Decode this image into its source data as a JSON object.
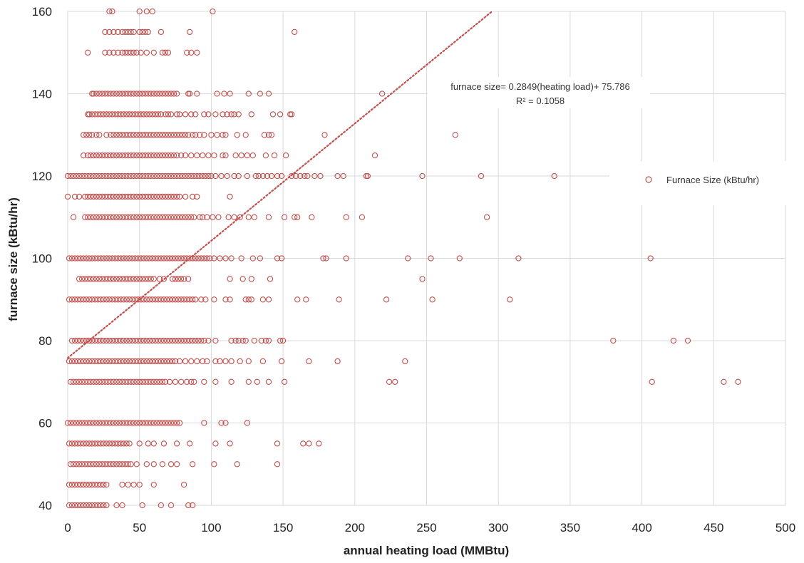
{
  "chart_data": {
    "type": "scatter",
    "xlabel": "annual heating load (MMBtu)",
    "ylabel": "furnace size (kBtu/hr)",
    "xlim": [
      0,
      500
    ],
    "ylim": [
      40,
      160
    ],
    "x_ticks": [
      0,
      50,
      100,
      150,
      200,
      250,
      300,
      350,
      400,
      450,
      500
    ],
    "y_ticks": [
      40,
      60,
      80,
      100,
      120,
      140,
      160
    ],
    "grid": true,
    "legend_position": "right",
    "series": [
      {
        "name": "Furnace Size (kBtu/hr)",
        "color": "#c0504d",
        "marker": "open-circle",
        "rows": [
          {
            "y": 160,
            "x": [
              29,
              31,
              50,
              55,
              59,
              101
            ]
          },
          {
            "y": 155,
            "x": [
              26,
              29,
              32,
              35,
              38,
              40,
              42,
              44,
              46,
              50,
              52,
              54,
              56,
              65,
              85,
              158
            ]
          },
          {
            "y": 150,
            "x": [
              14,
              26,
              29,
              32,
              35,
              38,
              40,
              42,
              44,
              46,
              48,
              51,
              55,
              60,
              66,
              68,
              70,
              83,
              86,
              90
            ]
          },
          {
            "y": 140,
            "x": [
              17,
              18,
              20,
              22,
              24,
              26,
              28,
              30,
              32,
              34,
              36,
              38,
              40,
              42,
              44,
              46,
              48,
              50,
              52,
              54,
              56,
              58,
              60,
              62,
              64,
              66,
              68,
              70,
              72,
              74,
              76,
              84,
              85,
              90,
              104,
              109,
              113,
              126,
              134,
              140,
              219
            ]
          },
          {
            "y": 135,
            "x": [
              14,
              15,
              17,
              19,
              21,
              23,
              25,
              27,
              29,
              31,
              33,
              35,
              37,
              39,
              41,
              43,
              45,
              47,
              49,
              51,
              53,
              55,
              57,
              59,
              61,
              63,
              65,
              68,
              70,
              72,
              76,
              78,
              82,
              86,
              89,
              95,
              98,
              103,
              108,
              111,
              114,
              116,
              119,
              128,
              143,
              148,
              155,
              156
            ]
          },
          {
            "y": 130,
            "x": [
              11,
              13,
              15,
              17,
              20,
              22,
              27,
              30,
              32,
              34,
              36,
              38,
              40,
              42,
              44,
              46,
              48,
              50,
              52,
              54,
              56,
              58,
              60,
              62,
              64,
              66,
              68,
              70,
              72,
              74,
              76,
              78,
              80,
              82,
              84,
              87,
              89,
              92,
              95,
              100,
              104,
              108,
              110,
              118,
              124,
              137,
              140,
              142,
              179,
              270
            ]
          },
          {
            "y": 125,
            "x": [
              11,
              14,
              16,
              18,
              20,
              22,
              24,
              26,
              28,
              30,
              32,
              34,
              36,
              38,
              40,
              42,
              44,
              46,
              48,
              50,
              52,
              54,
              56,
              58,
              60,
              62,
              64,
              66,
              68,
              70,
              72,
              74,
              76,
              79,
              82,
              86,
              90,
              94,
              98,
              102,
              108,
              110,
              117,
              121,
              125,
              129,
              138,
              144,
              152,
              214
            ]
          },
          {
            "y": 120,
            "x": [
              0,
              2,
              4,
              6,
              8,
              10,
              12,
              14,
              16,
              18,
              20,
              22,
              24,
              26,
              28,
              30,
              32,
              34,
              36,
              38,
              40,
              42,
              44,
              46,
              48,
              50,
              52,
              54,
              56,
              58,
              60,
              62,
              64,
              66,
              68,
              70,
              72,
              74,
              76,
              78,
              80,
              82,
              84,
              86,
              88,
              90,
              92,
              94,
              96,
              98,
              100,
              103,
              107,
              111,
              116,
              119,
              125,
              131,
              133,
              136,
              139,
              142,
              146,
              149,
              156,
              159,
              162,
              165,
              167,
              172,
              176,
              188,
              192,
              208,
              209,
              247,
              288,
              339
            ]
          },
          {
            "y": 115,
            "x": [
              0,
              5,
              8,
              12,
              14,
              16,
              18,
              20,
              22,
              24,
              26,
              28,
              30,
              32,
              34,
              36,
              38,
              40,
              42,
              44,
              46,
              48,
              50,
              52,
              54,
              56,
              58,
              60,
              62,
              64,
              66,
              68,
              70,
              72,
              74,
              76,
              78,
              82,
              87,
              90,
              113
            ]
          },
          {
            "y": 110,
            "x": [
              4,
              12,
              14,
              16,
              18,
              20,
              22,
              24,
              26,
              28,
              30,
              32,
              34,
              36,
              38,
              40,
              42,
              44,
              46,
              48,
              50,
              52,
              54,
              56,
              58,
              60,
              62,
              64,
              66,
              68,
              70,
              72,
              74,
              76,
              78,
              80,
              82,
              84,
              86,
              88,
              92,
              94,
              97,
              101,
              105,
              112,
              116,
              120,
              126,
              130,
              140,
              151,
              158,
              160,
              170,
              194,
              205,
              292
            ]
          },
          {
            "y": 100,
            "x": [
              1,
              3,
              5,
              7,
              9,
              11,
              13,
              15,
              17,
              19,
              21,
              23,
              25,
              27,
              29,
              31,
              33,
              35,
              37,
              39,
              41,
              43,
              45,
              47,
              49,
              51,
              53,
              55,
              57,
              59,
              61,
              63,
              65,
              67,
              69,
              71,
              73,
              75,
              77,
              79,
              81,
              83,
              85,
              87,
              89,
              91,
              93,
              95,
              97,
              99,
              102,
              106,
              110,
              114,
              121,
              129,
              134,
              146,
              149,
              178,
              180,
              194,
              237,
              253,
              273,
              314,
              406
            ]
          },
          {
            "y": 95,
            "x": [
              8,
              10,
              12,
              14,
              16,
              18,
              20,
              22,
              24,
              26,
              28,
              30,
              32,
              34,
              36,
              38,
              40,
              42,
              44,
              46,
              48,
              50,
              52,
              54,
              56,
              58,
              60,
              64,
              67,
              73,
              75,
              77,
              79,
              81,
              84,
              113,
              122,
              128,
              141,
              247
            ]
          },
          {
            "y": 90,
            "x": [
              1,
              3,
              5,
              7,
              9,
              11,
              13,
              15,
              17,
              19,
              21,
              23,
              25,
              27,
              29,
              31,
              33,
              35,
              37,
              39,
              41,
              43,
              45,
              47,
              49,
              51,
              53,
              55,
              57,
              59,
              61,
              63,
              65,
              67,
              69,
              71,
              73,
              75,
              77,
              79,
              81,
              83,
              85,
              87,
              89,
              93,
              96,
              102,
              110,
              113,
              124,
              126,
              128,
              136,
              140,
              160,
              166,
              189,
              222,
              254,
              308
            ]
          },
          {
            "y": 80,
            "x": [
              3,
              5,
              7,
              9,
              11,
              13,
              15,
              17,
              19,
              21,
              23,
              25,
              27,
              29,
              31,
              33,
              35,
              37,
              39,
              41,
              43,
              45,
              47,
              49,
              51,
              53,
              55,
              57,
              59,
              61,
              63,
              65,
              67,
              69,
              71,
              73,
              75,
              77,
              79,
              81,
              83,
              85,
              87,
              89,
              91,
              93,
              95,
              98,
              103,
              114,
              117,
              119,
              122,
              124,
              130,
              135,
              138,
              140,
              148,
              150,
              380,
              422,
              432
            ]
          },
          {
            "y": 75,
            "x": [
              1,
              3,
              5,
              7,
              9,
              11,
              13,
              15,
              17,
              19,
              21,
              23,
              25,
              27,
              29,
              31,
              33,
              35,
              37,
              39,
              41,
              43,
              45,
              47,
              49,
              51,
              53,
              55,
              57,
              59,
              61,
              63,
              65,
              67,
              69,
              71,
              73,
              75,
              78,
              82,
              86,
              90,
              94,
              97,
              103,
              106,
              110,
              114,
              120,
              126,
              136,
              149,
              168,
              188,
              235
            ]
          },
          {
            "y": 70,
            "x": [
              2,
              4,
              6,
              8,
              10,
              12,
              14,
              16,
              18,
              20,
              22,
              24,
              26,
              28,
              30,
              32,
              34,
              36,
              38,
              40,
              42,
              44,
              46,
              48,
              50,
              52,
              54,
              56,
              58,
              60,
              62,
              64,
              66,
              68,
              71,
              75,
              79,
              83,
              86,
              88,
              95,
              103,
              114,
              126,
              132,
              140,
              151,
              224,
              228,
              407,
              457,
              467
            ]
          },
          {
            "y": 60,
            "x": [
              0,
              2,
              4,
              6,
              8,
              10,
              12,
              14,
              16,
              18,
              20,
              22,
              24,
              26,
              28,
              30,
              32,
              34,
              36,
              38,
              40,
              42,
              44,
              46,
              48,
              50,
              52,
              54,
              56,
              58,
              60,
              62,
              64,
              66,
              68,
              70,
              72,
              74,
              76,
              78,
              95,
              107,
              110,
              125
            ]
          },
          {
            "y": 55,
            "x": [
              1,
              3,
              5,
              7,
              9,
              11,
              13,
              15,
              17,
              19,
              21,
              23,
              25,
              27,
              29,
              31,
              33,
              35,
              37,
              39,
              41,
              43,
              50,
              56,
              60,
              67,
              76,
              85,
              103,
              113,
              146,
              164,
              168,
              175
            ]
          },
          {
            "y": 50,
            "x": [
              2,
              4,
              6,
              8,
              10,
              12,
              14,
              16,
              18,
              20,
              22,
              24,
              26,
              28,
              30,
              32,
              34,
              36,
              38,
              40,
              42,
              44,
              48,
              55,
              60,
              66,
              72,
              76,
              87,
              102,
              118,
              146
            ]
          },
          {
            "y": 45,
            "x": [
              1,
              3,
              5,
              7,
              9,
              11,
              13,
              15,
              17,
              19,
              21,
              23,
              25,
              27,
              38,
              42,
              46,
              50,
              60,
              81
            ]
          },
          {
            "y": 40,
            "x": [
              1,
              3,
              5,
              7,
              9,
              11,
              13,
              15,
              17,
              19,
              21,
              23,
              25,
              27,
              34,
              38,
              52,
              65,
              72,
              84,
              87
            ]
          }
        ]
      }
    ],
    "trendline": {
      "slope": 0.2849,
      "intercept": 75.786,
      "style": "dotted",
      "color": "#c0504d",
      "equation_label": "furnace size= 0.2849(heating load)+ 75.786",
      "r2_label": "R² = 0.1058"
    }
  }
}
